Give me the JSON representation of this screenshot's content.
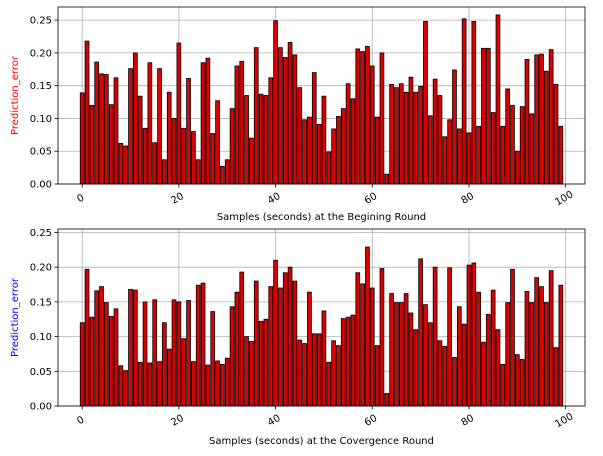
{
  "chart_data": [
    {
      "type": "bar",
      "xlabel": "Samples (seconds) at the Begining Round",
      "ylabel": "Prediction_error",
      "ylabel_color": "#ff0000",
      "bar_color": "#dd0000",
      "edge_color": "#000000",
      "xlim": [
        -5,
        104
      ],
      "ylim": [
        0,
        0.27
      ],
      "grid": true,
      "xticks": [
        "0",
        "20",
        "40",
        "60",
        "80",
        "100"
      ],
      "xtick_values": [
        0,
        20,
        40,
        60,
        80,
        100
      ],
      "xtick_rotation": 30,
      "yticks": [
        "0.00",
        "0.05",
        "0.10",
        "0.15",
        "0.20",
        "0.25"
      ],
      "ytick_values": [
        0,
        0.05,
        0.1,
        0.15,
        0.2,
        0.25
      ],
      "x": [
        0,
        1,
        2,
        3,
        4,
        5,
        6,
        7,
        8,
        9,
        10,
        11,
        12,
        13,
        14,
        15,
        16,
        17,
        18,
        19,
        20,
        21,
        22,
        23,
        24,
        25,
        26,
        27,
        28,
        29,
        30,
        31,
        32,
        33,
        34,
        35,
        36,
        37,
        38,
        39,
        40,
        41,
        42,
        43,
        44,
        45,
        46,
        47,
        48,
        49,
        50,
        51,
        52,
        53,
        54,
        55,
        56,
        57,
        58,
        59,
        60,
        61,
        62,
        63,
        64,
        65,
        66,
        67,
        68,
        69,
        70,
        71,
        72,
        73,
        74,
        75,
        76,
        77,
        78,
        79,
        80,
        81,
        82,
        83,
        84,
        85,
        86,
        87,
        88,
        89,
        90,
        91,
        92,
        93,
        94,
        95,
        96,
        97,
        98,
        99
      ],
      "values": [
        0.139,
        0.218,
        0.12,
        0.186,
        0.168,
        0.167,
        0.121,
        0.162,
        0.062,
        0.058,
        0.176,
        0.2,
        0.134,
        0.085,
        0.185,
        0.063,
        0.176,
        0.037,
        0.14,
        0.1,
        0.215,
        0.085,
        0.161,
        0.08,
        0.037,
        0.185,
        0.192,
        0.077,
        0.127,
        0.027,
        0.037,
        0.115,
        0.18,
        0.187,
        0.135,
        0.07,
        0.208,
        0.137,
        0.135,
        0.162,
        0.249,
        0.208,
        0.193,
        0.216,
        0.197,
        0.147,
        0.098,
        0.102,
        0.17,
        0.091,
        0.134,
        0.049,
        0.084,
        0.103,
        0.115,
        0.153,
        0.13,
        0.206,
        0.202,
        0.21,
        0.18,
        0.102,
        0.2,
        0.015,
        0.152,
        0.147,
        0.153,
        0.14,
        0.163,
        0.14,
        0.149,
        0.248,
        0.104,
        0.16,
        0.135,
        0.072,
        0.098,
        0.174,
        0.084,
        0.252,
        0.078,
        0.248,
        0.088,
        0.207,
        0.207,
        0.109,
        0.258,
        0.088,
        0.145,
        0.12,
        0.05,
        0.118,
        0.19,
        0.107,
        0.197,
        0.198,
        0.172,
        0.205,
        0.152,
        0.088
      ]
    },
    {
      "type": "bar",
      "xlabel": "Samples (seconds) at the Covergence Round",
      "ylabel": "Prediction_error",
      "ylabel_color": "#0000ff",
      "bar_color": "#dd0000",
      "edge_color": "#000000",
      "xlim": [
        -5,
        104
      ],
      "ylim": [
        0,
        0.255
      ],
      "grid": true,
      "xticks": [
        "0",
        "20",
        "40",
        "60",
        "80",
        "100"
      ],
      "xtick_values": [
        0,
        20,
        40,
        60,
        80,
        100
      ],
      "xtick_rotation": 30,
      "yticks": [
        "0.00",
        "0.05",
        "0.10",
        "0.15",
        "0.20",
        "0.25"
      ],
      "ytick_values": [
        0,
        0.05,
        0.1,
        0.15,
        0.2,
        0.25
      ],
      "x": [
        0,
        1,
        2,
        3,
        4,
        5,
        6,
        7,
        8,
        9,
        10,
        11,
        12,
        13,
        14,
        15,
        16,
        17,
        18,
        19,
        20,
        21,
        22,
        23,
        24,
        25,
        26,
        27,
        28,
        29,
        30,
        31,
        32,
        33,
        34,
        35,
        36,
        37,
        38,
        39,
        40,
        41,
        42,
        43,
        44,
        45,
        46,
        47,
        48,
        49,
        50,
        51,
        52,
        53,
        54,
        55,
        56,
        57,
        58,
        59,
        60,
        61,
        62,
        63,
        64,
        65,
        66,
        67,
        68,
        69,
        70,
        71,
        72,
        73,
        74,
        75,
        76,
        77,
        78,
        79,
        80,
        81,
        82,
        83,
        84,
        85,
        86,
        87,
        88,
        89,
        90,
        91,
        92,
        93,
        94,
        95,
        96,
        97,
        98,
        99
      ],
      "values": [
        0.12,
        0.197,
        0.128,
        0.166,
        0.172,
        0.149,
        0.129,
        0.14,
        0.058,
        0.051,
        0.168,
        0.167,
        0.063,
        0.15,
        0.062,
        0.153,
        0.064,
        0.12,
        0.082,
        0.153,
        0.15,
        0.097,
        0.152,
        0.064,
        0.174,
        0.177,
        0.059,
        0.136,
        0.065,
        0.06,
        0.069,
        0.143,
        0.164,
        0.193,
        0.1,
        0.093,
        0.18,
        0.122,
        0.125,
        0.172,
        0.21,
        0.17,
        0.192,
        0.2,
        0.18,
        0.095,
        0.09,
        0.164,
        0.104,
        0.104,
        0.137,
        0.063,
        0.094,
        0.087,
        0.126,
        0.128,
        0.131,
        0.192,
        0.176,
        0.229,
        0.17,
        0.087,
        0.198,
        0.018,
        0.162,
        0.149,
        0.149,
        0.162,
        0.134,
        0.11,
        0.212,
        0.146,
        0.12,
        0.2,
        0.094,
        0.086,
        0.199,
        0.07,
        0.143,
        0.118,
        0.203,
        0.206,
        0.164,
        0.092,
        0.132,
        0.167,
        0.11,
        0.06,
        0.149,
        0.197,
        0.074,
        0.067,
        0.165,
        0.149,
        0.185,
        0.172,
        0.149,
        0.195,
        0.084,
        0.174
      ]
    }
  ]
}
